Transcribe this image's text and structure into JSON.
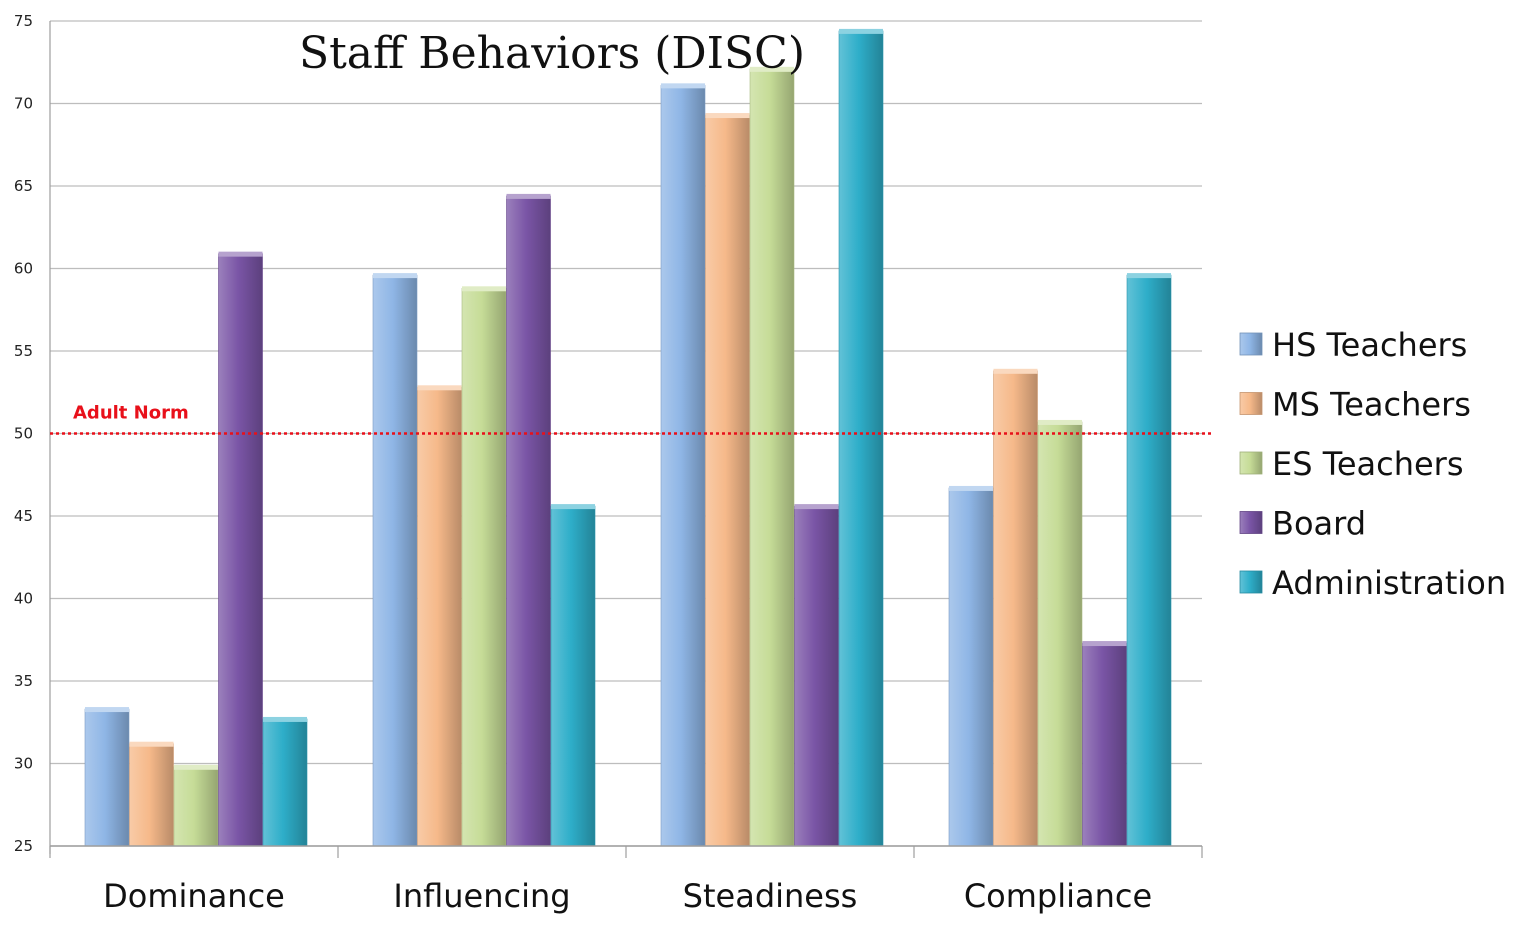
{
  "chart_data": {
    "type": "bar",
    "title": "Staff Behaviors (DISC)",
    "xlabel": "",
    "ylabel": "",
    "ylim": [
      25,
      75
    ],
    "yticks": [
      25,
      30,
      35,
      40,
      45,
      50,
      55,
      60,
      65,
      70,
      75
    ],
    "grid": true,
    "legend_position": "right",
    "categories": [
      "Dominance",
      "Influencing",
      "Steadiness",
      "Compliance"
    ],
    "series": [
      {
        "name": "HS Teachers",
        "color": "#8fb6e6",
        "values": [
          33.3,
          59.6,
          71.1,
          46.7
        ]
      },
      {
        "name": "MS Teachers",
        "color": "#f6b98a",
        "values": [
          31.2,
          52.8,
          69.3,
          53.8
        ]
      },
      {
        "name": "ES Teachers",
        "color": "#c6dc97",
        "values": [
          29.8,
          58.8,
          72.1,
          50.7
        ]
      },
      {
        "name": "Board",
        "color": "#7a55a6",
        "values": [
          60.9,
          64.4,
          45.6,
          37.3
        ]
      },
      {
        "name": "Administration",
        "color": "#2eaec9",
        "values": [
          32.7,
          45.6,
          74.4,
          59.6
        ]
      }
    ],
    "reference_line": {
      "label": "Adult Norm",
      "value": 50,
      "color": "#e8101a"
    }
  }
}
